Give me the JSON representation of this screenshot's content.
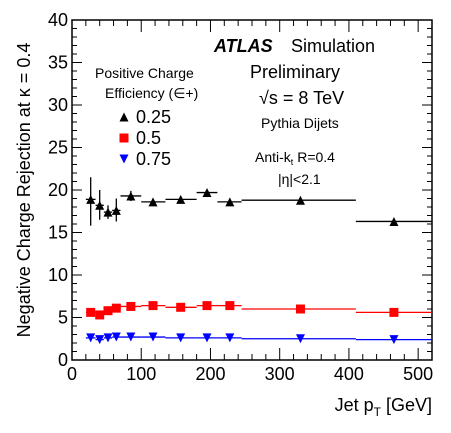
{
  "chart_data": {
    "type": "scatter",
    "xlabel": "Jet p_T [GeV]",
    "xlabel_main": "Jet p",
    "xlabel_sub": "T",
    "xlabel_unit": " [GeV]",
    "ylabel": "Negative Charge Rejection at κ = 0.4",
    "xlim": [
      0,
      520
    ],
    "ylim": [
      0,
      40
    ],
    "xticks": [
      "0",
      "100",
      "200",
      "300",
      "400",
      "500"
    ],
    "yticks": [
      "0",
      "5",
      "10",
      "15",
      "20",
      "25",
      "30",
      "35",
      "40"
    ],
    "grid": false,
    "legend_position": "upper-left",
    "atlas_label": "ATLAS",
    "atlas_suffix": "Simulation",
    "preliminary": "Preliminary",
    "energy_label": "√s = 8 TeV",
    "generator": "Pythia Dijets",
    "jet_algo": "Anti-k",
    "jet_algo_sub": "t",
    "jet_radius": " R=0.4",
    "eta_cut": "|η|<2.1",
    "legend_title_line1": "Positive Charge",
    "legend_title_line2": "Efficiency (∈+)",
    "series": [
      {
        "name": "0.25",
        "marker": "triangle-up",
        "color": "#000000",
        "points": [
          {
            "x": 27,
            "xlo": 20,
            "xhi": 34,
            "y": 18.9,
            "ylo": 15.8,
            "yhi": 21.5
          },
          {
            "x": 40,
            "xlo": 34,
            "xhi": 46,
            "y": 18.2,
            "ylo": 16.5,
            "yhi": 20.0
          },
          {
            "x": 52,
            "xlo": 46,
            "xhi": 58,
            "y": 17.4,
            "ylo": 16.6,
            "yhi": 18.2
          },
          {
            "x": 64,
            "xlo": 58,
            "xhi": 70,
            "y": 17.6,
            "ylo": 16.3,
            "yhi": 19.0
          },
          {
            "x": 85,
            "xlo": 70,
            "xhi": 100,
            "y": 19.3,
            "ylo": 18.7,
            "yhi": 19.9
          },
          {
            "x": 117,
            "xlo": 100,
            "xhi": 135,
            "y": 18.6,
            "ylo": 18.3,
            "yhi": 18.9
          },
          {
            "x": 157,
            "xlo": 135,
            "xhi": 180,
            "y": 18.9,
            "ylo": 18.7,
            "yhi": 19.1
          },
          {
            "x": 195,
            "xlo": 180,
            "xhi": 210,
            "y": 19.7,
            "ylo": 19.4,
            "yhi": 20.0
          },
          {
            "x": 228,
            "xlo": 210,
            "xhi": 245,
            "y": 18.6,
            "ylo": 18.3,
            "yhi": 18.9
          },
          {
            "x": 330,
            "xlo": 245,
            "xhi": 410,
            "y": 18.8,
            "ylo": 18.7,
            "yhi": 18.9
          },
          {
            "x": 465,
            "xlo": 410,
            "xhi": 520,
            "y": 16.3,
            "ylo": 16.1,
            "yhi": 16.5
          }
        ]
      },
      {
        "name": "0.5",
        "marker": "square",
        "color": "#ff0000",
        "points": [
          {
            "x": 27,
            "xlo": 20,
            "xhi": 34,
            "y": 5.6,
            "ylo": 5.4,
            "yhi": 5.8
          },
          {
            "x": 40,
            "xlo": 34,
            "xhi": 46,
            "y": 5.3,
            "ylo": 5.1,
            "yhi": 5.5
          },
          {
            "x": 52,
            "xlo": 46,
            "xhi": 58,
            "y": 5.8,
            "ylo": 5.6,
            "yhi": 6.0
          },
          {
            "x": 64,
            "xlo": 58,
            "xhi": 70,
            "y": 6.1,
            "ylo": 5.9,
            "yhi": 6.3
          },
          {
            "x": 85,
            "xlo": 70,
            "xhi": 100,
            "y": 6.3,
            "ylo": 6.2,
            "yhi": 6.4
          },
          {
            "x": 117,
            "xlo": 100,
            "xhi": 135,
            "y": 6.4,
            "ylo": 6.3,
            "yhi": 6.5
          },
          {
            "x": 157,
            "xlo": 135,
            "xhi": 180,
            "y": 6.2,
            "ylo": 6.1,
            "yhi": 6.3
          },
          {
            "x": 195,
            "xlo": 180,
            "xhi": 210,
            "y": 6.4,
            "ylo": 6.3,
            "yhi": 6.5
          },
          {
            "x": 228,
            "xlo": 210,
            "xhi": 245,
            "y": 6.4,
            "ylo": 6.3,
            "yhi": 6.5
          },
          {
            "x": 330,
            "xlo": 245,
            "xhi": 410,
            "y": 6.0,
            "ylo": 5.9,
            "yhi": 6.1
          },
          {
            "x": 465,
            "xlo": 410,
            "xhi": 520,
            "y": 5.6,
            "ylo": 5.5,
            "yhi": 5.7
          }
        ]
      },
      {
        "name": "0.75",
        "marker": "triangle-down",
        "color": "#0000ff",
        "points": [
          {
            "x": 27,
            "xlo": 20,
            "xhi": 34,
            "y": 2.6,
            "ylo": 2.5,
            "yhi": 2.7
          },
          {
            "x": 40,
            "xlo": 34,
            "xhi": 46,
            "y": 2.4,
            "ylo": 2.3,
            "yhi": 2.5
          },
          {
            "x": 52,
            "xlo": 46,
            "xhi": 58,
            "y": 2.6,
            "ylo": 2.5,
            "yhi": 2.7
          },
          {
            "x": 64,
            "xlo": 58,
            "xhi": 70,
            "y": 2.7,
            "ylo": 2.6,
            "yhi": 2.8
          },
          {
            "x": 85,
            "xlo": 70,
            "xhi": 100,
            "y": 2.7,
            "ylo": 2.6,
            "yhi": 2.8
          },
          {
            "x": 117,
            "xlo": 100,
            "xhi": 135,
            "y": 2.7,
            "ylo": 2.6,
            "yhi": 2.8
          },
          {
            "x": 157,
            "xlo": 135,
            "xhi": 180,
            "y": 2.6,
            "ylo": 2.5,
            "yhi": 2.7
          },
          {
            "x": 195,
            "xlo": 180,
            "xhi": 210,
            "y": 2.6,
            "ylo": 2.5,
            "yhi": 2.7
          },
          {
            "x": 228,
            "xlo": 210,
            "xhi": 245,
            "y": 2.6,
            "ylo": 2.5,
            "yhi": 2.7
          },
          {
            "x": 330,
            "xlo": 245,
            "xhi": 410,
            "y": 2.5,
            "ylo": 2.45,
            "yhi": 2.55
          },
          {
            "x": 465,
            "xlo": 410,
            "xhi": 520,
            "y": 2.4,
            "ylo": 2.35,
            "yhi": 2.45
          }
        ]
      }
    ]
  }
}
